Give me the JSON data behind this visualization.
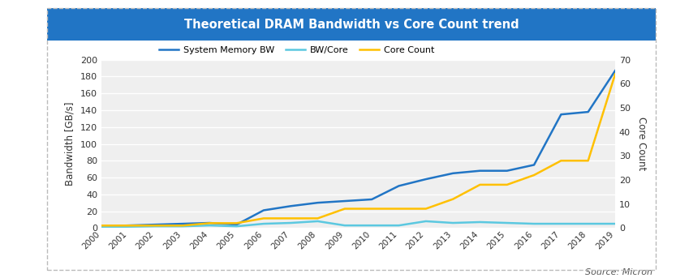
{
  "title": "Theoretical DRAM Bandwidth vs Core Count trend",
  "title_bg_color": "#2175C5",
  "title_text_color": "#FFFFFF",
  "ylabel_left": "Bandwidth [GB/s]",
  "ylabel_right": "Core Count",
  "source_text": "Source: Micron",
  "years": [
    2000,
    2001,
    2002,
    2003,
    2004,
    2005,
    2006,
    2007,
    2008,
    2009,
    2010,
    2011,
    2012,
    2013,
    2014,
    2015,
    2016,
    2017,
    2018,
    2019
  ],
  "system_memory_bw": [
    2,
    3,
    4,
    5,
    6,
    4,
    21,
    26,
    30,
    32,
    34,
    50,
    58,
    65,
    68,
    68,
    75,
    135,
    138,
    187
  ],
  "bw_per_core": [
    1,
    1.5,
    2,
    2,
    3,
    2,
    5,
    6,
    8,
    3,
    3,
    3,
    8,
    6,
    7,
    6,
    5,
    5,
    5,
    5
  ],
  "core_count": [
    1,
    1,
    1,
    1,
    2,
    2,
    4,
    4,
    4,
    8,
    8,
    8,
    8,
    12,
    18,
    18,
    22,
    28,
    28,
    64
  ],
  "color_memory_bw": "#2175C5",
  "color_bw_core": "#5BC8E0",
  "color_core_count": "#FFC000",
  "ylim_left": [
    0,
    200
  ],
  "ylim_right": [
    0,
    70
  ],
  "yticks_left": [
    0,
    20,
    40,
    60,
    80,
    100,
    120,
    140,
    160,
    180,
    200
  ],
  "yticks_right": [
    0,
    10,
    20,
    30,
    40,
    50,
    60,
    70
  ],
  "plot_bg_color": "#EFEFEF",
  "fig_bg_color": "#FFFFFF",
  "grid_color": "#FFFFFF",
  "legend_labels": [
    "System Memory BW",
    "BW/Core",
    "Core Count"
  ],
  "line_width": 1.8,
  "border_color": "#BBBBBB",
  "source_color": "#555555"
}
